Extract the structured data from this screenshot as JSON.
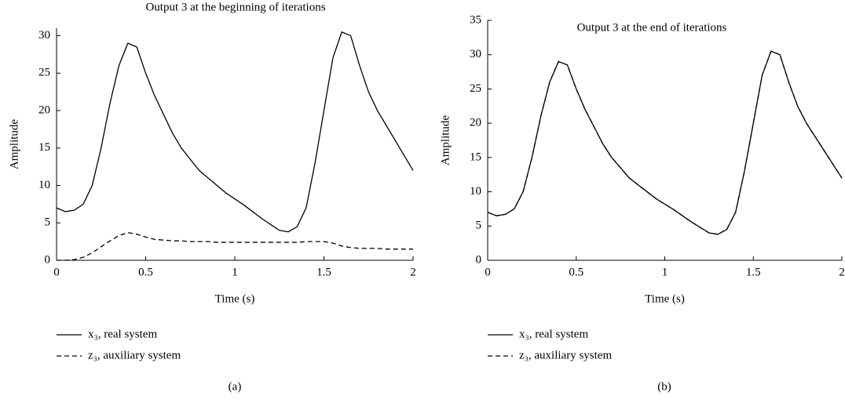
{
  "chart_data": [
    {
      "type": "line",
      "title": "Output 3 at the beginning of iterations",
      "xlabel": "Time (s)",
      "ylabel": "Amplitude",
      "caption": "(a)",
      "x": [
        0,
        0.05,
        0.1,
        0.15,
        0.2,
        0.25,
        0.3,
        0.35,
        0.4,
        0.45,
        0.5,
        0.55,
        0.6,
        0.65,
        0.7,
        0.75,
        0.8,
        0.85,
        0.9,
        0.95,
        1,
        1.05,
        1.1,
        1.15,
        1.2,
        1.25,
        1.3,
        1.35,
        1.4,
        1.45,
        1.5,
        1.55,
        1.6,
        1.65,
        1.7,
        1.75,
        1.8,
        1.85,
        1.9,
        1.95,
        2
      ],
      "series": [
        {
          "name": "x₃, real system",
          "color": "#000000",
          "line_style": "solid",
          "values": [
            7,
            6.5,
            6.7,
            7.5,
            10,
            15,
            21,
            26,
            29,
            28.5,
            25,
            22,
            19.5,
            17,
            15,
            13.5,
            12,
            11,
            10,
            9,
            8.2,
            7.4,
            6.5,
            5.6,
            4.8,
            4,
            3.8,
            4.5,
            7,
            13,
            20,
            27,
            30.5,
            30,
            26,
            22.5,
            20,
            18,
            16,
            14,
            12
          ]
        },
        {
          "name": "z₃, auxiliary system",
          "color": "#000000",
          "line_style": "dashed",
          "values": [
            0,
            0,
            0.1,
            0.4,
            1,
            1.8,
            2.6,
            3.3,
            3.7,
            3.5,
            3.1,
            2.8,
            2.7,
            2.6,
            2.6,
            2.5,
            2.5,
            2.5,
            2.4,
            2.4,
            2.4,
            2.4,
            2.4,
            2.4,
            2.4,
            2.4,
            2.4,
            2.4,
            2.5,
            2.5,
            2.5,
            2.3,
            1.9,
            1.7,
            1.6,
            1.6,
            1.6,
            1.5,
            1.5,
            1.5,
            1.5
          ]
        }
      ],
      "xlim": [
        0,
        2
      ],
      "xticks": [
        0,
        0.5,
        1,
        1.5,
        2
      ],
      "ylim": [
        0,
        31
      ],
      "yticks": [
        0,
        5,
        10,
        15,
        20,
        25,
        30
      ],
      "grid": false
    },
    {
      "type": "line",
      "title": "Output 3 at the end of iterations",
      "xlabel": "Time (s)",
      "ylabel": "Amplitude",
      "caption": "(b)",
      "x": [
        0,
        0.05,
        0.1,
        0.15,
        0.2,
        0.25,
        0.3,
        0.35,
        0.4,
        0.45,
        0.5,
        0.55,
        0.6,
        0.65,
        0.7,
        0.75,
        0.8,
        0.85,
        0.9,
        0.95,
        1,
        1.05,
        1.1,
        1.15,
        1.2,
        1.25,
        1.3,
        1.35,
        1.4,
        1.45,
        1.5,
        1.55,
        1.6,
        1.65,
        1.7,
        1.75,
        1.8,
        1.85,
        1.9,
        1.95,
        2
      ],
      "series": [
        {
          "name": "x₃, real system",
          "color": "#000000",
          "line_style": "solid",
          "values": [
            7,
            6.5,
            6.7,
            7.5,
            10,
            15,
            21,
            26,
            29,
            28.5,
            25,
            22,
            19.5,
            17,
            15,
            13.5,
            12,
            11,
            10,
            9,
            8.2,
            7.4,
            6.5,
            5.6,
            4.8,
            4,
            3.8,
            4.5,
            7,
            13,
            20,
            27,
            30.5,
            30,
            26,
            22.5,
            20,
            18,
            16,
            14,
            12
          ]
        },
        {
          "name": "z₃, auxiliary system",
          "color": "#000000",
          "line_style": "dashed",
          "values": [
            7,
            6.5,
            6.7,
            7.5,
            10,
            15,
            21,
            26,
            29,
            28.5,
            25,
            22,
            19.5,
            17,
            15,
            13.5,
            12,
            11,
            10,
            9,
            8.2,
            7.4,
            6.5,
            5.6,
            4.8,
            4,
            3.8,
            4.5,
            7,
            13,
            20,
            27,
            30.5,
            30,
            26,
            22.5,
            20,
            18,
            16,
            14,
            12
          ]
        }
      ],
      "xlim": [
        0,
        2
      ],
      "xticks": [
        0,
        0.5,
        1,
        1.5,
        2
      ],
      "ylim": [
        0,
        35
      ],
      "yticks": [
        0,
        5,
        10,
        15,
        20,
        25,
        30,
        35
      ],
      "grid": false
    }
  ]
}
